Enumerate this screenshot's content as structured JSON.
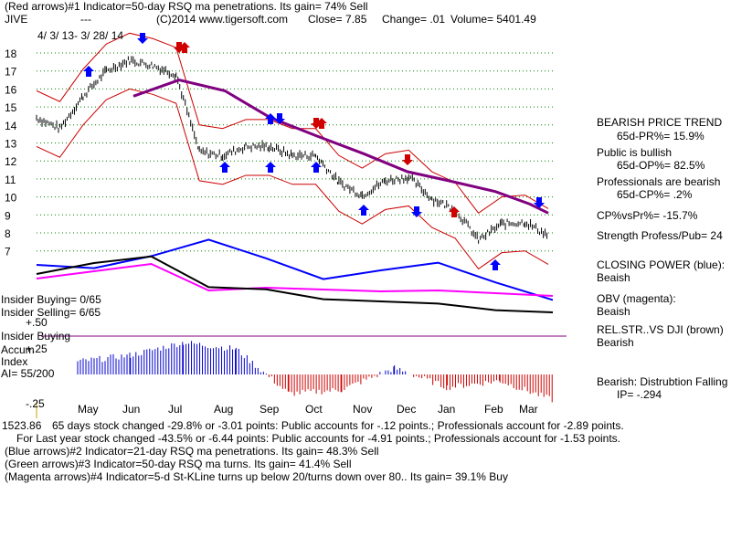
{
  "header": {
    "line1": "(Red arrows)#1 Indicator=50-day RSQ ma penetrations. Its gain= 74% Sell",
    "symbol": "JIVE",
    "dashes": "---",
    "copyright": "(C)2014 www.tigersoft.com",
    "close": "Close=  7.85",
    "change": "Change= .01",
    "volume": "Volume= 5401.49",
    "date_range": "4/ 3/ 13- 3/ 28/ 14"
  },
  "right_panel": {
    "trend_title": "BEARISH PRICE TREND",
    "pr": "65d-PR%= 15.9%",
    "public": "Public is bullish",
    "op": "65d-OP%= 82.5%",
    "pros": "Professionals are bearish",
    "cp": "65d-CP%= .2%",
    "cpvspr": "CP%vsPr%= -15.7%",
    "strength": "Strength Profess/Pub= 24",
    "closing_power_label": "CLOSING POWER (blue):",
    "closing_power_value": "Beaish",
    "obv_label": "OBV (magenta):",
    "obv_value": "Beaish",
    "relstr_label": "REL.STR..VS DJI (brown)",
    "relstr_value": "Bearish",
    "distribution": "Bearish: Distrubtion Falling",
    "ip": "IP= -.294"
  },
  "left_panel": {
    "insider_buying": "Insider Buying= 0/65",
    "insider_selling": "Insider Selling= 6/65",
    "insider_buying_label": "Insider Buying",
    "accum": "Accum",
    "index": "Index",
    "ai": "AI= 55/200",
    "plus50": "+.50",
    "plus25": "+.25",
    "minus25": "-.25"
  },
  "footer": {
    "line1_prefix": "1523.86",
    "line1": "65 days stock changed -29.8% or -3.01 points:  Public accounts for -.12 points.;  Professionals account for -2.89 points.",
    "line2": "For Last year stock changed -43.5% or -6.44 points:  Public accounts for -4.91 points.;  Professionals account for -1.53 points.",
    "line3": "(Blue arrows)#2 Indicator=21-day RSQ ma penetrations.  Its gain= 48.3% Sell",
    "line4": "(Green arrows)#3 Indicator=50-day RSQ ma turns.  Its gain= 41.4% Sell",
    "line5": "(Magenta arrows)#4 Indicator=5-d St-KLine turns up below 20/turns down over 80..  Its gain= 39.1% Buy"
  },
  "colors": {
    "price": "#000000",
    "closing_power": "#0000ff",
    "obv": "#ff00ff",
    "rel_strength": "#000000",
    "ma50": "#800080",
    "band": "#cc0000",
    "accum_pos": "#0000cc",
    "accum_neg": "#cc0000",
    "grid": "#008000"
  },
  "chart_data": {
    "type": "line",
    "title": "JIVE",
    "x_tick_labels": [
      "May",
      "Jun",
      "Jul",
      "Aug",
      "Sep",
      "Oct",
      "Nov",
      "Dec",
      "Jan",
      "Feb",
      "Mar"
    ],
    "y_tick_labels": [
      "18",
      "17",
      "16",
      "15",
      "14",
      "13",
      "12",
      "11",
      "10",
      "9",
      "8",
      "7"
    ],
    "ylim": [
      7,
      18
    ],
    "grid": true,
    "x_range": [
      "4/3/13",
      "3/28/14"
    ],
    "series": [
      {
        "type": "price",
        "x": [
          "Apr",
          "May",
          "May",
          "Jun",
          "Jun",
          "Jul",
          "Jul",
          "Aug",
          "Aug",
          "Sep",
          "Sep",
          "Oct",
          "Oct",
          "Nov",
          "Nov",
          "Dec",
          "Dec",
          "Jan",
          "Jan",
          "Feb",
          "Feb",
          "Mar",
          "Mar"
        ],
        "values": [
          14.4,
          13.8,
          15.6,
          17.0,
          17.6,
          17.3,
          16.8,
          12.5,
          12.3,
          12.8,
          12.8,
          12.3,
          12.3,
          10.8,
          10.1,
          10.9,
          11.1,
          9.9,
          9.3,
          7.6,
          8.5,
          8.6,
          7.85
        ]
      },
      {
        "type": "ma",
        "name": "50-day ma",
        "x": [
          "Jun",
          "Jul",
          "Aug",
          "Sep",
          "Oct",
          "Nov",
          "Dec",
          "Jan",
          "Feb",
          "Mar",
          "Mar"
        ],
        "values": [
          15.6,
          16.5,
          15.9,
          14.4,
          13.4,
          12.4,
          11.4,
          10.9,
          10.3,
          9.6,
          9.1
        ]
      }
    ],
    "closing_power": [
      0,
      -0.3,
      0.8,
      2.3,
      0.6,
      -1.3,
      -0.5,
      0.2,
      -1.6,
      -3.2
    ],
    "obv": [
      0,
      0.8,
      1.6,
      -1.3,
      -1.0,
      -1.2,
      -1.4,
      -1.3,
      -1.6,
      -1.9
    ],
    "rel_strength": [
      0,
      1.0,
      1.6,
      -1.2,
      -1.4,
      -2.3,
      -2.5,
      -2.7,
      -3.3,
      -3.5
    ],
    "accumulation": [
      0.1,
      0.15,
      0.25,
      0.2,
      -0.15,
      -0.12,
      0.05,
      -0.1,
      -0.05,
      -0.2
    ],
    "arrows": {
      "red": [
        "Jul",
        "Jul",
        "Oct",
        "Oct",
        "Dec",
        "Jan"
      ],
      "blue": [
        "May",
        "Jun",
        "Sep",
        "Sep",
        "Nov",
        "Dec",
        "Feb",
        "Mar"
      ],
      "green": [
        "Aug",
        "Sep",
        "Oct"
      ]
    }
  }
}
